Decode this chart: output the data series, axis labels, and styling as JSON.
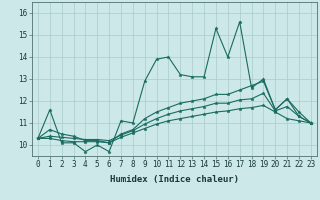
{
  "title": "",
  "xlabel": "Humidex (Indice chaleur)",
  "background_color": "#cce8e8",
  "grid_color": "#aacccc",
  "line_color": "#1a6b60",
  "x_values": [
    0,
    1,
    2,
    3,
    4,
    5,
    6,
    7,
    8,
    9,
    10,
    11,
    12,
    13,
    14,
    15,
    16,
    17,
    18,
    19,
    20,
    21,
    22,
    23
  ],
  "series": [
    [
      10.3,
      11.6,
      10.1,
      10.1,
      9.7,
      10.0,
      9.7,
      11.1,
      11.0,
      12.9,
      13.9,
      14.0,
      13.2,
      13.1,
      13.1,
      15.3,
      14.0,
      15.6,
      12.6,
      13.0,
      11.6,
      12.1,
      11.3,
      11.0
    ],
    [
      10.3,
      10.7,
      10.5,
      10.4,
      10.2,
      10.2,
      10.1,
      10.5,
      10.7,
      11.2,
      11.5,
      11.7,
      11.9,
      12.0,
      12.1,
      12.3,
      12.3,
      12.5,
      12.7,
      12.9,
      11.6,
      12.1,
      11.5,
      11.0
    ],
    [
      10.3,
      10.4,
      10.35,
      10.3,
      10.25,
      10.25,
      10.2,
      10.45,
      10.65,
      10.95,
      11.2,
      11.4,
      11.55,
      11.65,
      11.75,
      11.9,
      11.9,
      12.05,
      12.1,
      12.35,
      11.55,
      11.75,
      11.3,
      11.0
    ],
    [
      10.3,
      10.3,
      10.2,
      10.15,
      10.15,
      10.15,
      10.1,
      10.35,
      10.55,
      10.75,
      10.95,
      11.1,
      11.2,
      11.3,
      11.4,
      11.5,
      11.55,
      11.65,
      11.7,
      11.8,
      11.5,
      11.2,
      11.1,
      11.0
    ]
  ],
  "ylim": [
    9.5,
    16.5
  ],
  "yticks": [
    10,
    11,
    12,
    13,
    14,
    15,
    16
  ],
  "xticks": [
    0,
    1,
    2,
    3,
    4,
    5,
    6,
    7,
    8,
    9,
    10,
    11,
    12,
    13,
    14,
    15,
    16,
    17,
    18,
    19,
    20,
    21,
    22,
    23
  ],
  "tick_fontsize": 5.5,
  "xlabel_fontsize": 6.5
}
